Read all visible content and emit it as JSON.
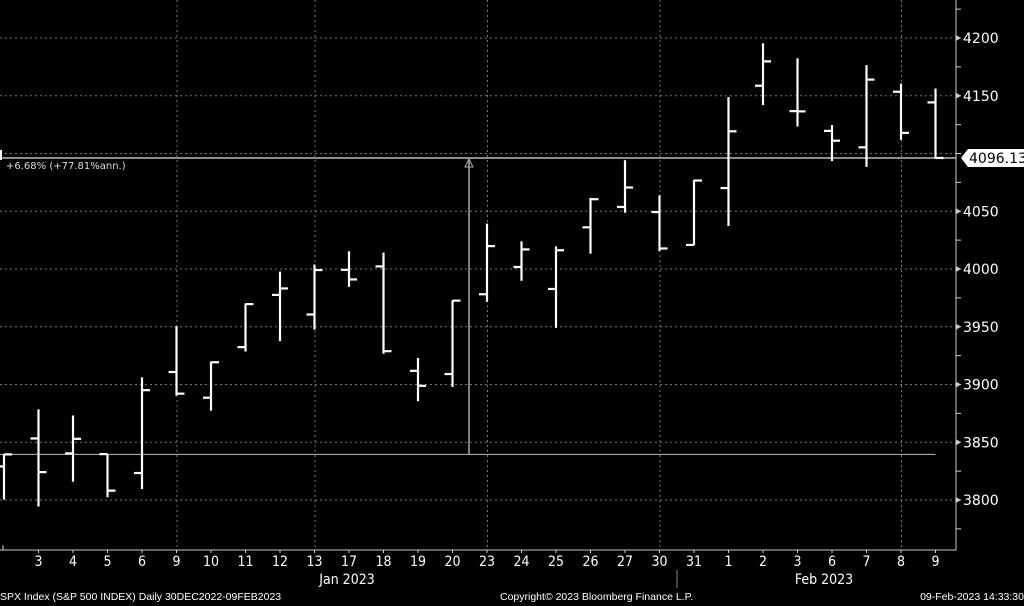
{
  "chart_data": {
    "type": "ohlc",
    "ticker": "SPX Index (S&P 500 INDEX)",
    "period": "Daily 30DEC2022-09FEB2023",
    "x_tick_labels": [
      "3",
      "4",
      "5",
      "6",
      "9",
      "10",
      "11",
      "12",
      "13",
      "17",
      "18",
      "19",
      "20",
      "23",
      "24",
      "25",
      "26",
      "27",
      "30",
      "31",
      "1",
      "2",
      "3",
      "6",
      "7",
      "8",
      "9"
    ],
    "month_labels": [
      "Jan 2023",
      "Feb 2023"
    ],
    "y_ticks": [
      3800,
      3850,
      3900,
      3950,
      4000,
      4050,
      4100,
      4150,
      4200
    ],
    "y_tick_labels": [
      "3800",
      "3850",
      "3900",
      "3950",
      "4000",
      "4050",
      "4150",
      "4200"
    ],
    "ylim": [
      3780,
      4215
    ],
    "grid": true,
    "bar_color": "#ffffff",
    "background": "#000000",
    "bars": [
      {
        "date": "2022-12-30",
        "o": 3829.06,
        "h": 3839.85,
        "l": 3800.34,
        "c": 3839.5
      },
      {
        "date": "2023-01-03",
        "o": 3853.29,
        "h": 3878.46,
        "l": 3794.33,
        "c": 3824.14
      },
      {
        "date": "2023-01-04",
        "o": 3840.36,
        "h": 3873.16,
        "l": 3815.77,
        "c": 3852.97
      },
      {
        "date": "2023-01-05",
        "o": 3839.74,
        "h": 3839.74,
        "l": 3802.42,
        "c": 3808.1
      },
      {
        "date": "2023-01-06",
        "o": 3823.37,
        "h": 3906.19,
        "l": 3809.56,
        "c": 3895.08
      },
      {
        "date": "2023-01-09",
        "o": 3910.82,
        "h": 3950.57,
        "l": 3890.42,
        "c": 3892.09
      },
      {
        "date": "2023-01-10",
        "o": 3888.57,
        "h": 3919.83,
        "l": 3877.29,
        "c": 3919.25
      },
      {
        "date": "2023-01-11",
        "o": 3932.35,
        "h": 3970.07,
        "l": 3928.54,
        "c": 3969.61
      },
      {
        "date": "2023-01-12",
        "o": 3977.57,
        "h": 3997.76,
        "l": 3937.56,
        "c": 3983.17
      },
      {
        "date": "2023-01-13",
        "o": 3960.6,
        "h": 4003.95,
        "l": 3947.67,
        "c": 3999.09
      },
      {
        "date": "2023-01-17",
        "o": 3999.28,
        "h": 4015.39,
        "l": 3984.57,
        "c": 3990.97
      },
      {
        "date": "2023-01-18",
        "o": 4002.25,
        "h": 4014.16,
        "l": 3926.59,
        "c": 3928.86
      },
      {
        "date": "2023-01-19",
        "o": 3911.84,
        "h": 3922.94,
        "l": 3885.54,
        "c": 3898.85
      },
      {
        "date": "2023-01-20",
        "o": 3909.04,
        "h": 3972.96,
        "l": 3897.86,
        "c": 3972.61
      },
      {
        "date": "2023-01-23",
        "o": 3978.14,
        "h": 4039.31,
        "l": 3971.64,
        "c": 4019.81
      },
      {
        "date": "2023-01-24",
        "o": 4001.74,
        "h": 4023.92,
        "l": 3989.79,
        "c": 4016.95
      },
      {
        "date": "2023-01-25",
        "o": 3982.71,
        "h": 4019.55,
        "l": 3949.06,
        "c": 4016.22
      },
      {
        "date": "2023-01-26",
        "o": 4036.08,
        "h": 4061.57,
        "l": 4013.29,
        "c": 4060.43
      },
      {
        "date": "2023-01-27",
        "o": 4053.72,
        "h": 4094.21,
        "l": 4048.7,
        "c": 4070.56
      },
      {
        "date": "2023-01-30",
        "o": 4049.27,
        "h": 4063.85,
        "l": 4015.55,
        "c": 4017.77
      },
      {
        "date": "2023-01-31",
        "o": 4020.85,
        "h": 4077.16,
        "l": 4020.44,
        "c": 4076.6
      },
      {
        "date": "2023-02-01",
        "o": 4070.07,
        "h": 4148.95,
        "l": 4037.2,
        "c": 4119.21
      },
      {
        "date": "2023-02-02",
        "o": 4158.68,
        "h": 4195.44,
        "l": 4141.88,
        "c": 4179.76
      },
      {
        "date": "2023-02-03",
        "o": 4136.69,
        "h": 4182.36,
        "l": 4123.36,
        "c": 4136.48
      },
      {
        "date": "2023-02-06",
        "o": 4119.57,
        "h": 4124.63,
        "l": 4093.38,
        "c": 4111.08
      },
      {
        "date": "2023-02-07",
        "o": 4105.35,
        "h": 4176.54,
        "l": 4088.39,
        "c": 4164.0
      },
      {
        "date": "2023-02-08",
        "o": 4153.47,
        "h": 4160.51,
        "l": 4111.86,
        "c": 4117.86
      },
      {
        "date": "2023-02-09",
        "o": 4144.25,
        "h": 4156.23,
        "l": 4095.5,
        "c": 4096.13
      }
    ],
    "last_price": "4096.13",
    "last_price_value": 4096.13,
    "reference_level": 3839.5,
    "annotation": "+6.68% (+77.81%ann.)"
  },
  "footer": {
    "left": "SPX Index (S&P 500 INDEX)  Daily 30DEC2022-09FEB2023",
    "center": "Copyright© 2023 Bloomberg Finance L.P.",
    "right": "09-Feb-2023 14:33:30"
  }
}
